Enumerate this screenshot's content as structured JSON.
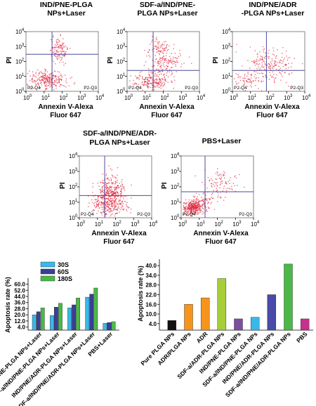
{
  "chart_data": [
    {
      "type": "scatter",
      "title": "IND/PNE-PLGA NPs+Laser",
      "xlabel": "Annexin V-Alexa Fluor 647",
      "ylabel": "PI",
      "xlim": [
        1,
        10000
      ],
      "ylim": [
        1,
        10000
      ],
      "xscale": "log",
      "yscale": "log",
      "quadrants": [
        "P2-Q4",
        "P2-Q3"
      ],
      "color": "#e0233a"
    },
    {
      "type": "scatter",
      "title": "SDF-a/IND/PNE-PLGA NPs+Laser",
      "xlabel": "Annexin V-Alexa Fluor 647",
      "ylabel": "PI",
      "xlim": [
        1,
        10000
      ],
      "ylim": [
        1,
        10000
      ],
      "xscale": "log",
      "yscale": "log",
      "quadrants": [
        "P2-Q4",
        "P2-Q3"
      ],
      "color": "#e0233a"
    },
    {
      "type": "scatter",
      "title": "IND/PNE/ADR-PLGA NPs+Laser",
      "xlabel": "Annexin V-Alexa Fluor 647",
      "ylabel": "PI",
      "xlim": [
        1,
        10000
      ],
      "ylim": [
        1,
        10000
      ],
      "xscale": "log",
      "yscale": "log",
      "quadrants": [
        "P2-Q4",
        "P2-Q3"
      ],
      "color": "#e0233a"
    },
    {
      "type": "scatter",
      "title": "SDF-a/IND/PNE/ADR-PLGA NPs+Laser",
      "xlabel": "Annexin V-Alexa Fluor 647",
      "ylabel": "PI",
      "xlim": [
        1,
        10000
      ],
      "ylim": [
        1,
        10000
      ],
      "xscale": "log",
      "yscale": "log",
      "quadrants": [
        "P2-Q4",
        "P2-Q3"
      ],
      "color": "#e0233a"
    },
    {
      "type": "scatter",
      "title": "PBS+Laser",
      "xlabel": "Annexin V-Alexa Fluor 647",
      "ylabel": "PI",
      "xlim": [
        1,
        10000
      ],
      "ylim": [
        1,
        10000
      ],
      "xscale": "log",
      "yscale": "log",
      "quadrants": [
        "P2-Q4",
        "P2-Q3"
      ],
      "color": "#e0233a"
    },
    {
      "type": "bar",
      "ylabel": "Apoptosis rate (%)",
      "ylim": [
        0,
        66
      ],
      "yticks": [
        "60.0",
        "52.0",
        "44.0",
        "36.0",
        "28.0",
        "20.0",
        "12.0",
        "4.0"
      ],
      "categories": [
        "IND/PNE-PLGA NPs+Laser",
        "SDF-a/IND/PNE-PLGA NPs+Laser",
        "IND/PNE/ADR-PLGA NPs+Laser",
        "SDF-a/IND/PNE/ADR-PLGA NPs+Laser",
        "PBS+Laser"
      ],
      "series": [
        {
          "name": "30S",
          "color": "#3ab8e8",
          "values": [
            20,
            19,
            29,
            43,
            9
          ]
        },
        {
          "name": "60S",
          "color": "#3a3f96",
          "values": [
            24,
            30,
            33,
            47,
            10
          ]
        },
        {
          "name": "180S",
          "color": "#4cb848",
          "values": [
            29,
            35,
            42,
            55,
            11
          ]
        }
      ],
      "legend": "top-left"
    },
    {
      "type": "bar",
      "ylabel": "Apoptosis rate (%)",
      "ylim": [
        0,
        44
      ],
      "yticks": [
        "40.0",
        "34.0",
        "28.0",
        "22.0",
        "16.0",
        "10.0",
        "4.0"
      ],
      "categories": [
        "Pure PLGA NPs",
        "ADR/PLGA NPs",
        "ADR",
        "SDF-a/ADR-PLGA NPs",
        "IND/PNE-PLGA NPs",
        "SDF-a/IND/PNE-PLGA NPs",
        "IND/PNE/ADR-PLGA NPs",
        "SDF-a/IND/PNE/ADR-PLGA NPs",
        "PBS"
      ],
      "values": [
        6,
        16,
        20,
        32,
        7,
        8,
        22,
        41,
        7
      ],
      "colors": [
        "#111111",
        "#f7941d",
        "#f7941d",
        "#a6ce39",
        "#7b4fa0",
        "#3ab8e8",
        "#4a4aa8",
        "#4cb848",
        "#c6308f"
      ]
    }
  ]
}
